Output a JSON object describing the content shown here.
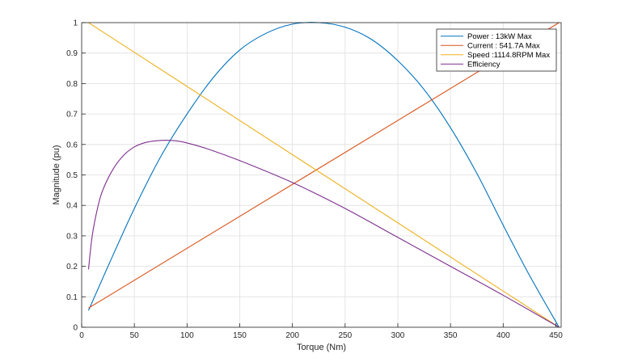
{
  "chart_data": {
    "type": "line",
    "title": "",
    "xlabel": "Torque (Nm)",
    "ylabel": "Magnitude (pu)",
    "xlim": [
      0,
      455
    ],
    "ylim": [
      0,
      1
    ],
    "x_ticks": [
      0,
      50,
      100,
      150,
      200,
      250,
      300,
      350,
      400,
      450
    ],
    "y_ticks": [
      0,
      0.1,
      0.2,
      0.3,
      0.4,
      0.5,
      0.6,
      0.7,
      0.8,
      0.9,
      1
    ],
    "x_tick_labels": [
      "0",
      "50",
      "100",
      "150",
      "200",
      "250",
      "300",
      "350",
      "400",
      "450"
    ],
    "y_tick_labels": [
      "0",
      "0.1",
      "0.2",
      "0.3",
      "0.4",
      "0.5",
      "0.6",
      "0.7",
      "0.8",
      "0.9",
      "1"
    ],
    "grid": true,
    "legend_position": "top-right",
    "series": [
      {
        "name": "Power : 13kW Max",
        "color": "#0072BD",
        "x": [
          6.5,
          25,
          50,
          75,
          100,
          125,
          150,
          175,
          200,
          225,
          250,
          275,
          300,
          325,
          350,
          375,
          400,
          425,
          453
        ],
        "values": [
          0.055,
          0.2,
          0.39,
          0.56,
          0.7,
          0.82,
          0.91,
          0.965,
          0.995,
          1.0,
          0.985,
          0.945,
          0.875,
          0.78,
          0.655,
          0.505,
          0.335,
          0.17,
          0.0
        ]
      },
      {
        "name": "Current : 541.7A Max",
        "color": "#D95319",
        "x": [
          6.5,
          453
        ],
        "values": [
          0.063,
          1.0
        ]
      },
      {
        "name": "Speed :1114.8RPM Max",
        "color": "#EDB120",
        "x": [
          6.5,
          453
        ],
        "values": [
          1.0,
          0.0
        ]
      },
      {
        "name": "Efficiency",
        "color": "#7E2F8E",
        "x": [
          6.5,
          10,
          15,
          20,
          30,
          40,
          50,
          60,
          70,
          80,
          90,
          100,
          120,
          150,
          200,
          250,
          300,
          350,
          400,
          453
        ],
        "values": [
          0.19,
          0.3,
          0.39,
          0.45,
          0.52,
          0.565,
          0.592,
          0.606,
          0.612,
          0.614,
          0.612,
          0.605,
          0.585,
          0.547,
          0.475,
          0.39,
          0.295,
          0.2,
          0.105,
          0.0
        ]
      }
    ]
  }
}
